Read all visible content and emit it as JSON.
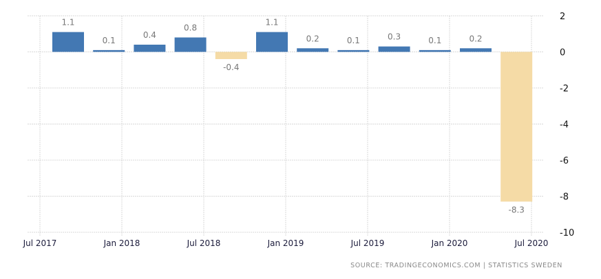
{
  "chart_data": {
    "type": "bar",
    "categories": [
      "Q3 2017",
      "Q4 2017",
      "Q1 2018",
      "Q2 2018",
      "Q3 2018",
      "Q4 2018",
      "Q1 2019",
      "Q2 2019",
      "Q3 2019",
      "Q4 2019",
      "Q1 2020",
      "Q2 2020"
    ],
    "values": [
      1.1,
      0.1,
      0.4,
      0.8,
      -0.4,
      1.1,
      0.2,
      0.1,
      0.3,
      0.1,
      0.2,
      -8.3
    ],
    "data_labels": [
      "1.1",
      "0.1",
      "0.4",
      "0.8",
      "-0.4",
      "1.1",
      "0.2",
      "0.1",
      "0.3",
      "0.1",
      "0.2",
      "-8.3"
    ],
    "x_tick_labels": [
      "Jul 2017",
      "Jan 2018",
      "Jul 2018",
      "Jan 2019",
      "Jul 2019",
      "Jan 2020",
      "Jul 2020"
    ],
    "y_ticks": [
      2,
      0,
      -2,
      -4,
      -6,
      -8,
      -10
    ],
    "ylim": [
      -10,
      2
    ],
    "y_axis_position": "right",
    "grid": true,
    "colors": {
      "positive": "#4378b3",
      "negative": "#f5dba6"
    },
    "title": "",
    "xlabel": "",
    "ylabel": ""
  },
  "source": "SOURCE:  TRADINGECONOMICS.COM  |  STATISTICS  SWEDEN"
}
